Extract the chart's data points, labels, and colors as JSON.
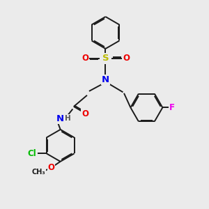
{
  "bg_color": "#ebebeb",
  "bond_color": "#1a1a1a",
  "bond_width": 1.4,
  "dbo": 0.055,
  "figsize": [
    3.0,
    3.0
  ],
  "dpi": 100,
  "atom_colors": {
    "N": "#0000ee",
    "O": "#ee0000",
    "S": "#bbbb00",
    "Cl": "#00bb00",
    "F": "#ee00ee",
    "H": "#555555",
    "C": "#1a1a1a"
  },
  "font_size": 8.5
}
